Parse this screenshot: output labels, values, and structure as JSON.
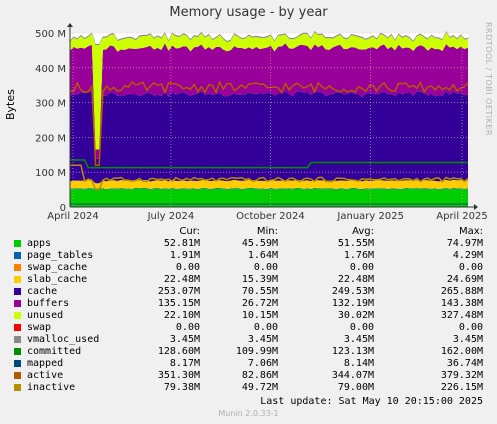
{
  "chart_data": {
    "type": "area",
    "title": "Memory usage - by year",
    "ylabel": "Bytes",
    "ylim": [
      0,
      500
    ],
    "y_ticks": [
      "0",
      "100 M",
      "200 M",
      "300 M",
      "400 M",
      "500 M"
    ],
    "x_ticks": [
      "April 2024",
      "July 2024",
      "October 2024",
      "January 2025",
      "April 2025"
    ],
    "grid": true,
    "colors": {
      "apps": "#00cc00",
      "page_tables": "#0066b3",
      "swap_cache": "#ff8000",
      "slab_cache": "#ffcc00",
      "cache": "#330099",
      "buffers": "#990099",
      "unused": "#ccff00",
      "swap": "#ff0000",
      "vmalloc_used": "#888888",
      "committed": "#008f00",
      "mapped": "#00487d",
      "active": "#b35a00",
      "inactive": "#b38f00"
    },
    "series": [
      {
        "name": "apps",
        "values": [
          52.81,
          45.59,
          51.55,
          74.97
        ]
      },
      {
        "name": "page_tables",
        "values": [
          1.91,
          1.64,
          1.76,
          4.29
        ]
      },
      {
        "name": "swap_cache",
        "values": [
          0,
          0,
          0,
          0
        ]
      },
      {
        "name": "slab_cache",
        "values": [
          22.48,
          15.39,
          22.48,
          24.69
        ]
      },
      {
        "name": "cache",
        "values": [
          253.07,
          70.55,
          249.53,
          265.88
        ]
      },
      {
        "name": "buffers",
        "values": [
          135.15,
          26.72,
          132.19,
          143.38
        ]
      },
      {
        "name": "unused",
        "values": [
          22.1,
          10.15,
          30.02,
          327.48
        ]
      },
      {
        "name": "swap",
        "values": [
          0,
          0,
          0,
          0
        ]
      },
      {
        "name": "vmalloc_used",
        "values": [
          3.45,
          3.45,
          3.45,
          3.45
        ]
      },
      {
        "name": "committed",
        "values": [
          128.6,
          109.99,
          123.13,
          162.0
        ]
      },
      {
        "name": "mapped",
        "values": [
          8.17,
          7.06,
          8.14,
          36.74
        ]
      },
      {
        "name": "active",
        "values": [
          351.3,
          82.86,
          344.07,
          379.32
        ]
      },
      {
        "name": "inactive",
        "values": [
          79.38,
          49.72,
          79.0,
          226.15
        ]
      }
    ]
  },
  "legend": {
    "headers": {
      "cur": "Cur:",
      "min": "Min:",
      "avg": "Avg:",
      "max": "Max:"
    },
    "rows": [
      {
        "name": "apps",
        "color": "#00cc00",
        "cur": "52.81M",
        "min": "45.59M",
        "avg": "51.55M",
        "max": "74.97M"
      },
      {
        "name": "page_tables",
        "color": "#0066b3",
        "cur": "1.91M",
        "min": "1.64M",
        "avg": "1.76M",
        "max": "4.29M"
      },
      {
        "name": "swap_cache",
        "color": "#ff8000",
        "cur": "0.00",
        "min": "0.00",
        "avg": "0.00",
        "max": "0.00"
      },
      {
        "name": "slab_cache",
        "color": "#ffcc00",
        "cur": "22.48M",
        "min": "15.39M",
        "avg": "22.48M",
        "max": "24.69M"
      },
      {
        "name": "cache",
        "color": "#330099",
        "cur": "253.07M",
        "min": "70.55M",
        "avg": "249.53M",
        "max": "265.88M"
      },
      {
        "name": "buffers",
        "color": "#990099",
        "cur": "135.15M",
        "min": "26.72M",
        "avg": "132.19M",
        "max": "143.38M"
      },
      {
        "name": "unused",
        "color": "#ccff00",
        "cur": "22.10M",
        "min": "10.15M",
        "avg": "30.02M",
        "max": "327.48M"
      },
      {
        "name": "swap",
        "color": "#ff0000",
        "cur": "0.00",
        "min": "0.00",
        "avg": "0.00",
        "max": "0.00"
      },
      {
        "name": "vmalloc_used",
        "color": "#888888",
        "cur": "3.45M",
        "min": "3.45M",
        "avg": "3.45M",
        "max": "3.45M"
      },
      {
        "name": "committed",
        "color": "#008f00",
        "cur": "128.60M",
        "min": "109.99M",
        "avg": "123.13M",
        "max": "162.00M"
      },
      {
        "name": "mapped",
        "color": "#00487d",
        "cur": "8.17M",
        "min": "7.06M",
        "avg": "8.14M",
        "max": "36.74M"
      },
      {
        "name": "active",
        "color": "#b35a00",
        "cur": "351.30M",
        "min": "82.86M",
        "avg": "344.07M",
        "max": "379.32M"
      },
      {
        "name": "inactive",
        "color": "#b38f00",
        "cur": "79.38M",
        "min": "49.72M",
        "avg": "79.00M",
        "max": "226.15M"
      }
    ]
  },
  "last_update": "Last update:  Sat May 10 20:15:00 2025",
  "footer": "Munin 2.0.33-1",
  "side_label": "RRDTOOL / TOBI OETIKER"
}
